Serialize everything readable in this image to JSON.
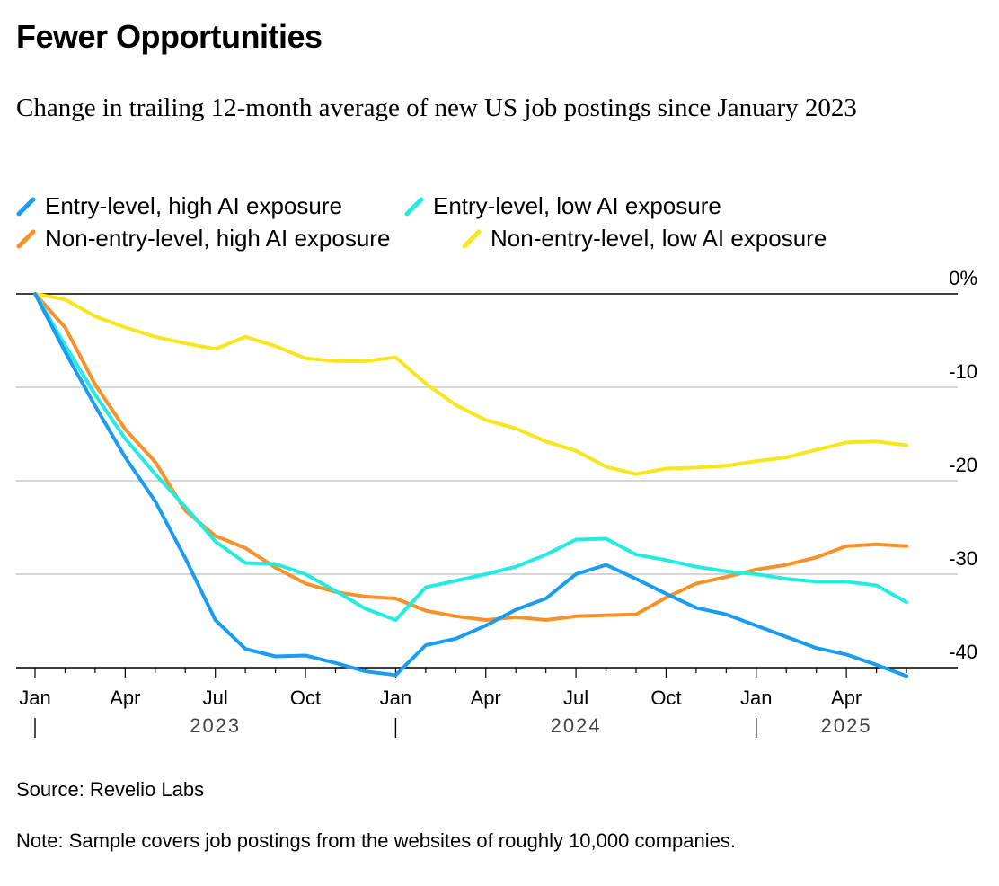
{
  "title": "Fewer Opportunities",
  "subtitle": "Change in trailing 12-month average of new US job postings since January 2023",
  "source": "Source: Revelio Labs",
  "note": "Note: Sample covers job postings from the websites of roughly 10,000 companies.",
  "chart_data": {
    "type": "line",
    "title": "Fewer Opportunities",
    "subtitle": "Change in trailing 12-month average of new US job postings since January 2023",
    "xlabel": "",
    "ylabel": "",
    "y_unit": "%",
    "ylim": [
      -41,
      0
    ],
    "y_ticks": [
      0,
      -10,
      -20,
      -30,
      -40
    ],
    "y_tick_labels": [
      "0%",
      "-10",
      "-20",
      "-30",
      "-40"
    ],
    "x_ticks": [
      {
        "label": "Jan",
        "month": 0
      },
      {
        "label": "Apr",
        "month": 3
      },
      {
        "label": "Jul",
        "month": 6
      },
      {
        "label": "Oct",
        "month": 9
      },
      {
        "label": "Jan",
        "month": 12
      },
      {
        "label": "Apr",
        "month": 15
      },
      {
        "label": "Jul",
        "month": 18
      },
      {
        "label": "Oct",
        "month": 21
      },
      {
        "label": "Jan",
        "month": 24
      },
      {
        "label": "Apr",
        "month": 27
      }
    ],
    "year_labels": [
      {
        "label": "2023",
        "start_month": 0
      },
      {
        "label": "2024",
        "start_month": 12
      },
      {
        "label": "2025",
        "start_month": 24
      }
    ],
    "x": [
      "2023-01",
      "2023-02",
      "2023-03",
      "2023-04",
      "2023-05",
      "2023-06",
      "2023-07",
      "2023-08",
      "2023-09",
      "2023-10",
      "2023-11",
      "2023-12",
      "2024-01",
      "2024-02",
      "2024-03",
      "2024-04",
      "2024-05",
      "2024-06",
      "2024-07",
      "2024-08",
      "2024-09",
      "2024-10",
      "2024-11",
      "2024-12",
      "2025-01",
      "2025-02",
      "2025-03",
      "2025-04",
      "2025-05",
      "2025-06"
    ],
    "grid": "horizontal",
    "legend_position": "top-left",
    "series": [
      {
        "name": "Entry-level, high AI exposure",
        "color": "#1a9cf0",
        "values": [
          0,
          -6.2,
          -12.0,
          -17.5,
          -22.2,
          -28.3,
          -34.9,
          -38.0,
          -38.8,
          -38.7,
          -39.5,
          -40.4,
          -40.8,
          -37.6,
          -36.9,
          -35.5,
          -33.8,
          -32.6,
          -30.0,
          -29.0,
          -30.5,
          -32.1,
          -33.6,
          -34.3,
          -35.5,
          -36.7,
          -37.9,
          -38.6,
          -39.7,
          -40.9
        ]
      },
      {
        "name": "Entry-level, low AI exposure",
        "color": "#22ebe0",
        "values": [
          0,
          -5.5,
          -10.8,
          -15.5,
          -19.3,
          -22.8,
          -26.5,
          -28.8,
          -28.9,
          -30.0,
          -31.8,
          -33.7,
          -34.9,
          -31.4,
          -30.7,
          -30.0,
          -29.2,
          -27.9,
          -26.3,
          -26.2,
          -27.9,
          -28.5,
          -29.2,
          -29.7,
          -30.0,
          -30.5,
          -30.8,
          -30.8,
          -31.2,
          -33.0
        ]
      },
      {
        "name": "Non-entry-level, high AI exposure",
        "color": "#f7922b",
        "values": [
          0,
          -3.6,
          -9.7,
          -14.5,
          -18.0,
          -23.2,
          -25.9,
          -27.2,
          -29.3,
          -31.0,
          -31.9,
          -32.4,
          -32.6,
          -33.9,
          -34.5,
          -34.9,
          -34.6,
          -34.9,
          -34.5,
          -34.4,
          -34.3,
          -32.5,
          -31.0,
          -30.3,
          -29.5,
          -29.0,
          -28.2,
          -27.0,
          -26.8,
          -27.0
        ]
      },
      {
        "name": "Non-entry-level, low AI exposure",
        "color": "#f8e51b",
        "values": [
          0,
          -0.6,
          -2.4,
          -3.6,
          -4.6,
          -5.3,
          -5.9,
          -4.6,
          -5.6,
          -6.9,
          -7.2,
          -7.2,
          -6.8,
          -9.6,
          -11.9,
          -13.5,
          -14.4,
          -15.8,
          -16.8,
          -18.5,
          -19.3,
          -18.7,
          -18.6,
          -18.4,
          -17.9,
          -17.5,
          -16.7,
          -15.9,
          -15.8,
          -16.2
        ]
      }
    ]
  }
}
